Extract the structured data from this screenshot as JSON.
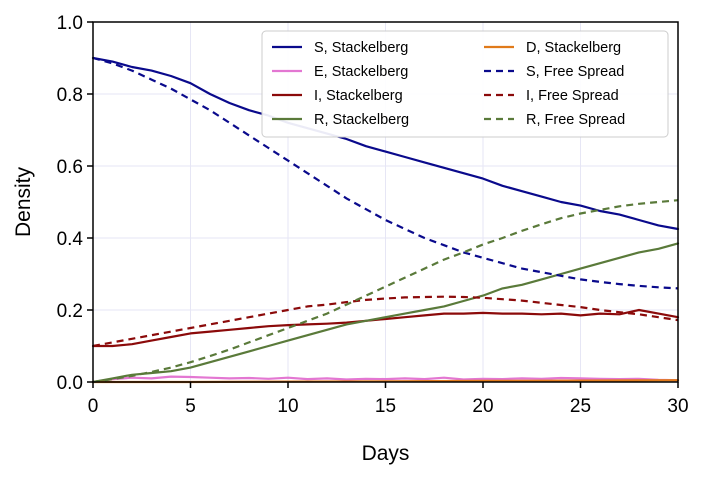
{
  "chart_data": {
    "type": "line",
    "title": "",
    "xlabel": "Days",
    "ylabel": "Density",
    "xlim": [
      0,
      30
    ],
    "ylim": [
      0,
      1.0
    ],
    "xticks": [
      0,
      5,
      10,
      15,
      20,
      25,
      30
    ],
    "yticks": [
      0.0,
      0.2,
      0.4,
      0.6,
      0.8,
      1.0
    ],
    "xtick_labels": [
      "0",
      "5",
      "10",
      "15",
      "20",
      "25",
      "30"
    ],
    "ytick_labels": [
      "0.0",
      "0.2",
      "0.4",
      "0.6",
      "0.8",
      "1.0"
    ],
    "grid": true,
    "legend_position": "top-right",
    "legend_columns": 2,
    "series": [
      {
        "name": "S, Stackelberg",
        "color": "#0a0a8c",
        "style": "solid",
        "x": [
          0,
          1,
          2,
          3,
          4,
          5,
          6,
          7,
          8,
          9,
          10,
          11,
          12,
          13,
          14,
          15,
          16,
          17,
          18,
          19,
          20,
          21,
          22,
          23,
          24,
          25,
          26,
          27,
          28,
          29,
          30
        ],
        "y": [
          0.9,
          0.89,
          0.875,
          0.865,
          0.85,
          0.83,
          0.8,
          0.775,
          0.755,
          0.74,
          0.72,
          0.705,
          0.69,
          0.675,
          0.655,
          0.64,
          0.625,
          0.61,
          0.595,
          0.58,
          0.565,
          0.545,
          0.53,
          0.515,
          0.5,
          0.49,
          0.475,
          0.465,
          0.45,
          0.435,
          0.425
        ]
      },
      {
        "name": "E, Stackelberg",
        "color": "#e377d2",
        "style": "solid",
        "x": [
          0,
          1,
          2,
          3,
          4,
          5,
          6,
          7,
          8,
          9,
          10,
          11,
          12,
          13,
          14,
          15,
          16,
          17,
          18,
          19,
          20,
          21,
          22,
          23,
          24,
          25,
          26,
          27,
          28,
          29,
          30
        ],
        "y": [
          0.0,
          0.008,
          0.012,
          0.01,
          0.015,
          0.014,
          0.012,
          0.01,
          0.011,
          0.009,
          0.012,
          0.008,
          0.01,
          0.007,
          0.009,
          0.008,
          0.01,
          0.008,
          0.012,
          0.007,
          0.009,
          0.008,
          0.01,
          0.009,
          0.011,
          0.01,
          0.009,
          0.008,
          0.009,
          0.006,
          0.005
        ]
      },
      {
        "name": "I, Stackelberg",
        "color": "#8b0a0a",
        "style": "solid",
        "x": [
          0,
          1,
          2,
          3,
          4,
          5,
          6,
          7,
          8,
          9,
          10,
          11,
          12,
          13,
          14,
          15,
          16,
          17,
          18,
          19,
          20,
          21,
          22,
          23,
          24,
          25,
          26,
          27,
          28,
          29,
          30
        ],
        "y": [
          0.1,
          0.1,
          0.105,
          0.115,
          0.125,
          0.135,
          0.14,
          0.145,
          0.15,
          0.155,
          0.158,
          0.16,
          0.162,
          0.165,
          0.17,
          0.175,
          0.18,
          0.185,
          0.19,
          0.19,
          0.192,
          0.19,
          0.19,
          0.188,
          0.19,
          0.185,
          0.19,
          0.188,
          0.2,
          0.19,
          0.18
        ]
      },
      {
        "name": "R, Stackelberg",
        "color": "#5a7a3a",
        "style": "solid",
        "x": [
          0,
          1,
          2,
          3,
          4,
          5,
          6,
          7,
          8,
          9,
          10,
          11,
          12,
          13,
          14,
          15,
          16,
          17,
          18,
          19,
          20,
          21,
          22,
          23,
          24,
          25,
          26,
          27,
          28,
          29,
          30
        ],
        "y": [
          0.0,
          0.01,
          0.02,
          0.025,
          0.03,
          0.04,
          0.055,
          0.07,
          0.085,
          0.1,
          0.115,
          0.13,
          0.145,
          0.16,
          0.17,
          0.18,
          0.19,
          0.2,
          0.21,
          0.225,
          0.24,
          0.26,
          0.27,
          0.285,
          0.3,
          0.315,
          0.33,
          0.345,
          0.36,
          0.37,
          0.385
        ]
      },
      {
        "name": "D, Stackelberg",
        "color": "#e07a1a",
        "style": "solid",
        "x": [
          0,
          5,
          10,
          15,
          20,
          25,
          30
        ],
        "y": [
          0.0,
          0.0,
          0.001,
          0.002,
          0.003,
          0.004,
          0.005
        ]
      },
      {
        "name": "S, Free Spread",
        "color": "#0a0a8c",
        "style": "dashed",
        "x": [
          0,
          1,
          2,
          3,
          4,
          5,
          6,
          7,
          8,
          9,
          10,
          11,
          12,
          13,
          14,
          15,
          16,
          17,
          18,
          19,
          20,
          21,
          22,
          23,
          24,
          25,
          26,
          27,
          28,
          29,
          30
        ],
        "y": [
          0.9,
          0.885,
          0.865,
          0.84,
          0.815,
          0.785,
          0.755,
          0.72,
          0.685,
          0.65,
          0.615,
          0.58,
          0.545,
          0.51,
          0.48,
          0.45,
          0.425,
          0.4,
          0.38,
          0.36,
          0.345,
          0.33,
          0.315,
          0.305,
          0.295,
          0.285,
          0.278,
          0.272,
          0.267,
          0.263,
          0.26
        ]
      },
      {
        "name": "I, Free Spread",
        "color": "#8b0a0a",
        "style": "dashed",
        "x": [
          0,
          1,
          2,
          3,
          4,
          5,
          6,
          7,
          8,
          9,
          10,
          11,
          12,
          13,
          14,
          15,
          16,
          17,
          18,
          19,
          20,
          21,
          22,
          23,
          24,
          25,
          26,
          27,
          28,
          29,
          30
        ],
        "y": [
          0.1,
          0.11,
          0.12,
          0.13,
          0.14,
          0.15,
          0.16,
          0.17,
          0.18,
          0.19,
          0.2,
          0.21,
          0.215,
          0.222,
          0.228,
          0.232,
          0.235,
          0.236,
          0.237,
          0.236,
          0.234,
          0.23,
          0.226,
          0.22,
          0.214,
          0.208,
          0.2,
          0.194,
          0.188,
          0.18,
          0.172
        ]
      },
      {
        "name": "R, Free Spread",
        "color": "#5a7a3a",
        "style": "dashed",
        "x": [
          0,
          1,
          2,
          3,
          4,
          5,
          6,
          7,
          8,
          9,
          10,
          11,
          12,
          13,
          14,
          15,
          16,
          17,
          18,
          19,
          20,
          21,
          22,
          23,
          24,
          25,
          26,
          27,
          28,
          29,
          30
        ],
        "y": [
          0.0,
          0.008,
          0.017,
          0.028,
          0.04,
          0.055,
          0.072,
          0.09,
          0.11,
          0.13,
          0.15,
          0.17,
          0.19,
          0.215,
          0.24,
          0.265,
          0.29,
          0.315,
          0.34,
          0.36,
          0.382,
          0.4,
          0.42,
          0.438,
          0.455,
          0.468,
          0.478,
          0.488,
          0.495,
          0.5,
          0.505
        ]
      }
    ],
    "legend_order": [
      "S, Stackelberg",
      "D, Stackelberg",
      "E, Stackelberg",
      "S, Free Spread",
      "I, Stackelberg",
      "I, Free Spread",
      "R, Stackelberg",
      "R, Free Spread"
    ]
  }
}
